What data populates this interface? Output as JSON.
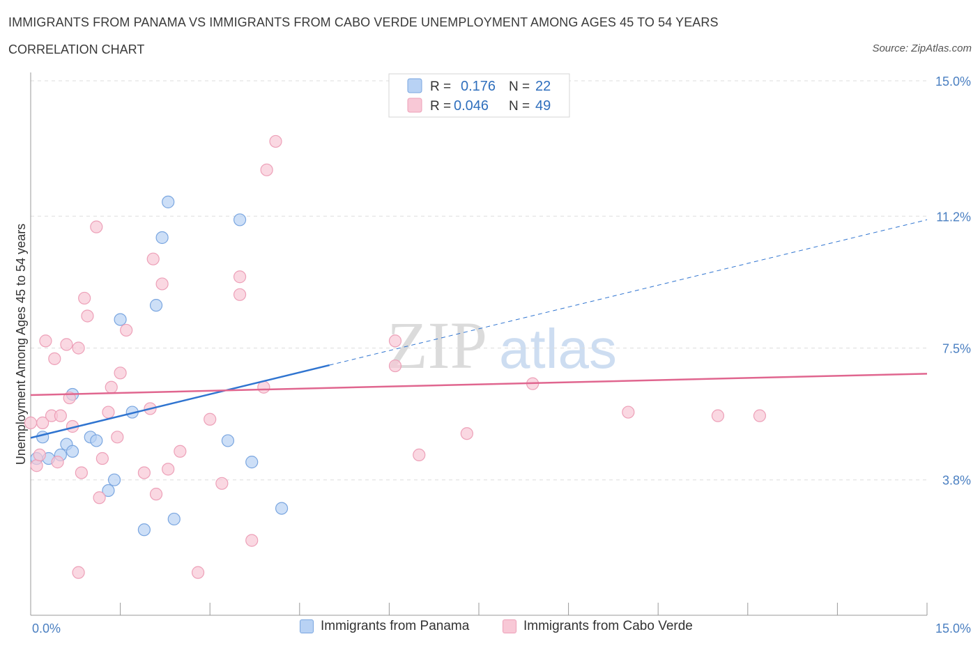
{
  "header": {
    "title": "IMMIGRANTS FROM PANAMA VS IMMIGRANTS FROM CABO VERDE UNEMPLOYMENT AMONG AGES 45 TO 54 YEARS",
    "subtitle": "CORRELATION CHART",
    "source": "Source: ZipAtlas.com"
  },
  "watermark": {
    "zip": "ZIP",
    "atlas": "atlas"
  },
  "legend": {
    "r_label": "R =",
    "n_label": "N =",
    "panama": {
      "r": "0.176",
      "n": "22"
    },
    "caboverde": {
      "r": "0.046",
      "n": "49"
    }
  },
  "bottom_legend": {
    "panama": "Immigrants from Panama",
    "caboverde": "Immigrants from Cabo Verde"
  },
  "colors": {
    "panama_fill": "#b8d2f4",
    "panama_stroke": "#7aa6e0",
    "panama_line": "#2f74d0",
    "caboverde_fill": "#f8c8d6",
    "caboverde_stroke": "#eda0b8",
    "caboverde_line": "#e0668f",
    "axis_text": "#4a7fc1",
    "grid": "#dddddd"
  },
  "chart_data": {
    "type": "scatter",
    "title": "IMMIGRANTS FROM PANAMA VS IMMIGRANTS FROM CABO VERDE UNEMPLOYMENT AMONG AGES 45 TO 54 YEARS",
    "xlabel": "",
    "ylabel": "Unemployment Among Ages 45 to 54 years",
    "xlim": [
      0,
      15
    ],
    "ylim": [
      0,
      15
    ],
    "x_tick_labels": [
      "0.0%",
      "15.0%"
    ],
    "y_ticks": [
      3.8,
      7.5,
      11.2,
      15.0
    ],
    "y_tick_labels": [
      "3.8%",
      "7.5%",
      "11.2%",
      "15.0%"
    ],
    "grid": true,
    "series": [
      {
        "name": "Immigrants from Panama",
        "points": [
          [
            0.1,
            4.4
          ],
          [
            0.2,
            5.0
          ],
          [
            0.3,
            4.4
          ],
          [
            0.5,
            4.5
          ],
          [
            0.6,
            4.8
          ],
          [
            0.7,
            6.2
          ],
          [
            1.0,
            5.0
          ],
          [
            1.1,
            4.9
          ],
          [
            1.3,
            3.5
          ],
          [
            1.4,
            3.8
          ],
          [
            1.5,
            8.3
          ],
          [
            1.7,
            5.7
          ],
          [
            1.9,
            2.4
          ],
          [
            2.1,
            8.7
          ],
          [
            2.2,
            10.6
          ],
          [
            2.3,
            11.6
          ],
          [
            2.4,
            2.7
          ],
          [
            3.3,
            4.9
          ],
          [
            3.5,
            11.1
          ],
          [
            3.7,
            4.3
          ],
          [
            4.2,
            3.0
          ],
          [
            0.7,
            4.6
          ]
        ],
        "trend": {
          "x0": 0.0,
          "y0": 4.98,
          "x_solid_end": 5.0,
          "x1": 15.0,
          "y1": 11.1
        }
      },
      {
        "name": "Immigrants from Cabo Verde",
        "points": [
          [
            0.0,
            5.4
          ],
          [
            0.1,
            4.2
          ],
          [
            0.15,
            4.5
          ],
          [
            0.2,
            5.4
          ],
          [
            0.25,
            7.7
          ],
          [
            0.35,
            5.6
          ],
          [
            0.4,
            7.2
          ],
          [
            0.45,
            4.3
          ],
          [
            0.5,
            5.6
          ],
          [
            0.6,
            7.6
          ],
          [
            0.65,
            6.1
          ],
          [
            0.7,
            5.3
          ],
          [
            0.8,
            7.5
          ],
          [
            0.85,
            4.0
          ],
          [
            0.9,
            8.9
          ],
          [
            0.95,
            8.4
          ],
          [
            1.1,
            10.9
          ],
          [
            1.15,
            3.3
          ],
          [
            1.2,
            4.4
          ],
          [
            1.3,
            5.7
          ],
          [
            1.35,
            6.4
          ],
          [
            1.45,
            5.0
          ],
          [
            1.5,
            6.8
          ],
          [
            1.6,
            8.0
          ],
          [
            0.8,
            1.2
          ],
          [
            1.9,
            4.0
          ],
          [
            2.0,
            5.8
          ],
          [
            2.05,
            10.0
          ],
          [
            2.1,
            3.4
          ],
          [
            2.2,
            9.3
          ],
          [
            2.3,
            4.1
          ],
          [
            2.5,
            4.6
          ],
          [
            2.8,
            1.2
          ],
          [
            3.0,
            5.5
          ],
          [
            3.2,
            3.7
          ],
          [
            3.5,
            9.5
          ],
          [
            3.5,
            9.0
          ],
          [
            3.7,
            2.1
          ],
          [
            3.9,
            6.4
          ],
          [
            3.95,
            12.5
          ],
          [
            4.1,
            13.3
          ],
          [
            6.1,
            7.7
          ],
          [
            6.1,
            7.0
          ],
          [
            6.5,
            4.5
          ],
          [
            7.3,
            5.1
          ],
          [
            8.4,
            6.5
          ],
          [
            10.0,
            5.7
          ],
          [
            11.5,
            5.6
          ],
          [
            12.2,
            5.6
          ]
        ],
        "trend": {
          "x0": 0.0,
          "y0": 6.18,
          "x1": 15.0,
          "y1": 6.78
        }
      }
    ]
  }
}
